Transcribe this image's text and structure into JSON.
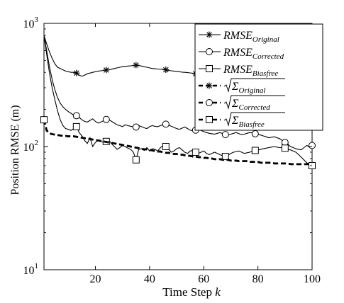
{
  "chart_data": {
    "type": "line",
    "title": "",
    "xlabel_prefix": "Time Step ",
    "xlabel_var": "k",
    "ylabel": "Position RMSE (m)",
    "x_ticks": [
      20,
      40,
      60,
      80,
      100
    ],
    "x_tick_labels": [
      "20",
      "40",
      "60",
      "80",
      "100"
    ],
    "xlim": [
      1,
      100
    ],
    "ylim": [
      10,
      1000
    ],
    "y_scale": "log",
    "y_ticks": [
      {
        "value": 10,
        "base": "10",
        "exp": "1"
      },
      {
        "value": 100,
        "base": "10",
        "exp": "2"
      },
      {
        "value": 1000,
        "base": "10",
        "exp": "3"
      }
    ],
    "grid": false,
    "legend_position": "top-right",
    "x": [
      1,
      2,
      3,
      4,
      5,
      6,
      7,
      8,
      9,
      10,
      11,
      12,
      13,
      14,
      15,
      16,
      17,
      18,
      19,
      20,
      21,
      22,
      23,
      24,
      25,
      26,
      27,
      28,
      29,
      30,
      31,
      32,
      33,
      34,
      35,
      36,
      37,
      38,
      39,
      40,
      41,
      42,
      43,
      44,
      45,
      46,
      47,
      48,
      49,
      50,
      51,
      52,
      53,
      54,
      55,
      56,
      57,
      58,
      59,
      60,
      61,
      62,
      63,
      64,
      65,
      66,
      67,
      68,
      69,
      70,
      71,
      72,
      73,
      74,
      75,
      76,
      77,
      78,
      79,
      80,
      81,
      82,
      83,
      84,
      85,
      86,
      87,
      88,
      89,
      90,
      91,
      92,
      93,
      94,
      95,
      96,
      97,
      98,
      99,
      100
    ],
    "series": [
      {
        "name": "RMSE_Original",
        "legend_main": "RMSE",
        "legend_sub": "Original",
        "style": "solid",
        "marker": "asterisk",
        "color": "#000000",
        "marker_x": [
          13,
          24,
          35,
          46,
          57,
          68,
          79,
          90,
          100
        ],
        "values": [
          800,
          680,
          590,
          520,
          470,
          440,
          430,
          420,
          410,
          405,
          400,
          400,
          395,
          380,
          372,
          380,
          390,
          395,
          400,
          405,
          410,
          412,
          415,
          418,
          420,
          425,
          430,
          435,
          440,
          445,
          448,
          450,
          452,
          455,
          458,
          455,
          450,
          445,
          440,
          435,
          430,
          428,
          426,
          425,
          424,
          420,
          415,
          412,
          410,
          408,
          405,
          402,
          400,
          398,
          396,
          393,
          390,
          388,
          385,
          383,
          381,
          380,
          381,
          382,
          384,
          385,
          384,
          383,
          382,
          381,
          380,
          379,
          378,
          377,
          376,
          376,
          377,
          378,
          379,
          380,
          380,
          379,
          378,
          377,
          376,
          375,
          374,
          373,
          372,
          372,
          373,
          374,
          375,
          376,
          377,
          378,
          378,
          379,
          379,
          380
        ]
      },
      {
        "name": "RMSE_Corrected",
        "legend_main": "RMSE",
        "legend_sub": "Corrected",
        "style": "solid",
        "marker": "circle",
        "color": "#000000",
        "marker_x": [
          13,
          24,
          35,
          46,
          57,
          68,
          79,
          90,
          100
        ],
        "values": [
          800,
          600,
          450,
          350,
          290,
          250,
          225,
          210,
          200,
          192,
          186,
          180,
          178,
          172,
          165,
          160,
          158,
          163,
          168,
          160,
          155,
          158,
          162,
          166,
          165,
          160,
          155,
          150,
          148,
          145,
          150,
          148,
          146,
          145,
          144,
          148,
          145,
          142,
          140,
          145,
          148,
          146,
          145,
          148,
          150,
          152,
          150,
          146,
          143,
          140,
          138,
          141,
          144,
          140,
          136,
          134,
          136,
          138,
          135,
          132,
          130,
          128,
          127,
          126,
          128,
          130,
          127,
          125,
          124,
          126,
          128,
          130,
          127,
          125,
          126,
          128,
          130,
          129,
          127,
          125,
          124,
          122,
          120,
          118,
          119,
          120,
          118,
          116,
          112,
          108,
          105,
          100,
          98,
          96,
          95,
          94,
          98,
          102,
          100,
          102
        ]
      },
      {
        "name": "RMSE_Biasfree",
        "legend_main": "RMSE",
        "legend_sub": "Biasfree",
        "style": "solid",
        "marker": "square",
        "color": "#000000",
        "marker_x": [
          13,
          24,
          35,
          46,
          57,
          68,
          79,
          90,
          100
        ],
        "values": [
          800,
          560,
          400,
          300,
          240,
          195,
          165,
          148,
          140,
          138,
          135,
          140,
          145,
          130,
          122,
          112,
          106,
          118,
          100,
          108,
          112,
          110,
          108,
          110,
          112,
          105,
          100,
          95,
          98,
          102,
          100,
          97,
          95,
          90,
          78,
          95,
          96,
          93,
          98,
          92,
          96,
          95,
          92,
          98,
          102,
          100,
          96,
          90,
          92,
          96,
          98,
          94,
          90,
          88,
          92,
          93,
          90,
          88,
          90,
          92,
          88,
          86,
          88,
          90,
          88,
          86,
          84,
          83,
          85,
          88,
          90,
          91,
          92,
          90,
          88,
          89,
          90,
          92,
          93,
          94,
          95,
          96,
          97,
          98,
          99,
          100,
          99,
          98,
          98,
          97,
          95,
          94,
          92,
          90,
          86,
          82,
          78,
          74,
          72,
          70
        ]
      },
      {
        "name": "sqrt_Sigma_Original",
        "legend_main": "Σ",
        "legend_sub": "Original",
        "style": "dashed",
        "marker": "asterisk",
        "color": "#000000",
        "marker_x": [
          1
        ],
        "values": [
          165,
          135,
          128,
          126,
          125,
          124,
          123,
          122,
          122,
          121,
          121,
          121,
          120,
          119,
          118,
          117,
          116,
          115,
          114,
          113,
          112,
          111,
          110,
          109,
          108,
          107,
          106,
          105,
          104,
          103,
          102,
          101,
          100,
          99,
          98,
          97,
          96,
          95,
          95,
          94,
          93,
          92,
          91,
          91,
          90,
          89,
          89,
          88,
          87,
          87,
          86,
          86,
          85,
          84,
          84,
          83,
          83,
          82,
          82,
          81,
          81,
          80,
          80,
          79,
          79,
          79,
          78,
          78,
          78,
          77,
          77,
          77,
          76,
          76,
          76,
          76,
          75,
          75,
          75,
          75,
          74,
          74,
          74,
          74,
          74,
          73,
          73,
          73,
          73,
          73,
          73,
          72,
          72,
          72,
          72,
          72,
          72,
          72,
          72,
          72
        ]
      },
      {
        "name": "sqrt_Sigma_Corrected",
        "legend_main": "Σ",
        "legend_sub": "Corrected",
        "style": "dashed",
        "marker": "circle",
        "color": "#000000",
        "marker_x": [
          1
        ],
        "values": [
          165,
          135,
          128,
          126,
          125,
          124,
          123,
          122,
          122,
          121,
          121,
          121,
          120,
          119,
          118,
          117,
          116,
          115,
          114,
          113,
          112,
          111,
          110,
          109,
          108,
          107,
          106,
          105,
          104,
          103,
          102,
          101,
          100,
          99,
          98,
          97,
          96,
          95,
          95,
          94,
          93,
          92,
          91,
          91,
          90,
          89,
          89,
          88,
          87,
          87,
          86,
          86,
          85,
          84,
          84,
          83,
          83,
          82,
          82,
          81,
          81,
          80,
          80,
          79,
          79,
          79,
          78,
          78,
          78,
          77,
          77,
          77,
          76,
          76,
          76,
          76,
          75,
          75,
          75,
          75,
          74,
          74,
          74,
          74,
          74,
          73,
          73,
          73,
          73,
          73,
          73,
          72,
          72,
          72,
          72,
          72,
          72,
          72,
          72,
          72
        ]
      },
      {
        "name": "sqrt_Sigma_Biasfree",
        "legend_main": "Σ",
        "legend_sub": "Biasfree",
        "style": "dashed",
        "marker": "square",
        "color": "#000000",
        "marker_x": [
          1
        ],
        "values": [
          165,
          135,
          128,
          126,
          125,
          124,
          123,
          122,
          122,
          121,
          121,
          121,
          120,
          119,
          118,
          117,
          116,
          115,
          114,
          113,
          112,
          111,
          110,
          109,
          108,
          107,
          106,
          105,
          104,
          103,
          102,
          101,
          100,
          99,
          98,
          97,
          96,
          95,
          95,
          94,
          93,
          92,
          91,
          91,
          90,
          89,
          89,
          88,
          87,
          87,
          86,
          86,
          85,
          84,
          84,
          83,
          83,
          82,
          82,
          81,
          81,
          80,
          80,
          79,
          79,
          79,
          78,
          78,
          78,
          77,
          77,
          77,
          76,
          76,
          76,
          76,
          75,
          75,
          75,
          75,
          74,
          74,
          74,
          74,
          74,
          73,
          73,
          73,
          73,
          73,
          73,
          72,
          72,
          72,
          72,
          72,
          72,
          72,
          72,
          72
        ]
      }
    ]
  }
}
